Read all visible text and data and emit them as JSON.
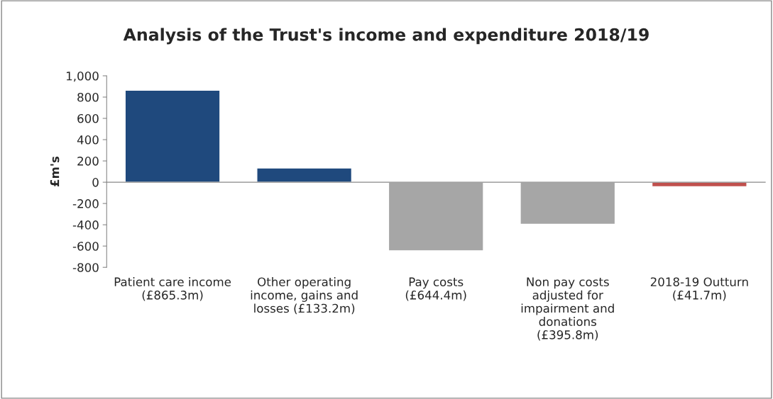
{
  "chart_data": {
    "type": "bar",
    "title": "Analysis of the Trust's income and expenditure 2018/19",
    "ylabel": "£m's",
    "categories": [
      "Patient care income\n(£865.3m)",
      "Other operating\nincome, gains and\nlosses (£133.2m)",
      "Pay costs\n(£644.4m)",
      "Non pay costs\nadjusted for\nimpairment and\ndonations\n(£395.8m)",
      "2018-19 Outturn\n(£41.7m)"
    ],
    "values": [
      865.3,
      133.2,
      -644.4,
      -395.8,
      -41.7
    ],
    "colors": [
      "#1f497d",
      "#1f497d",
      "#a6a6a6",
      "#a6a6a6",
      "#c0504d"
    ],
    "ylim": [
      -800,
      1000
    ],
    "yticks": [
      {
        "value": 1000,
        "label": "1,000"
      },
      800,
      600,
      400,
      200,
      0,
      -200,
      -400,
      -600,
      -800
    ],
    "legend": false
  }
}
